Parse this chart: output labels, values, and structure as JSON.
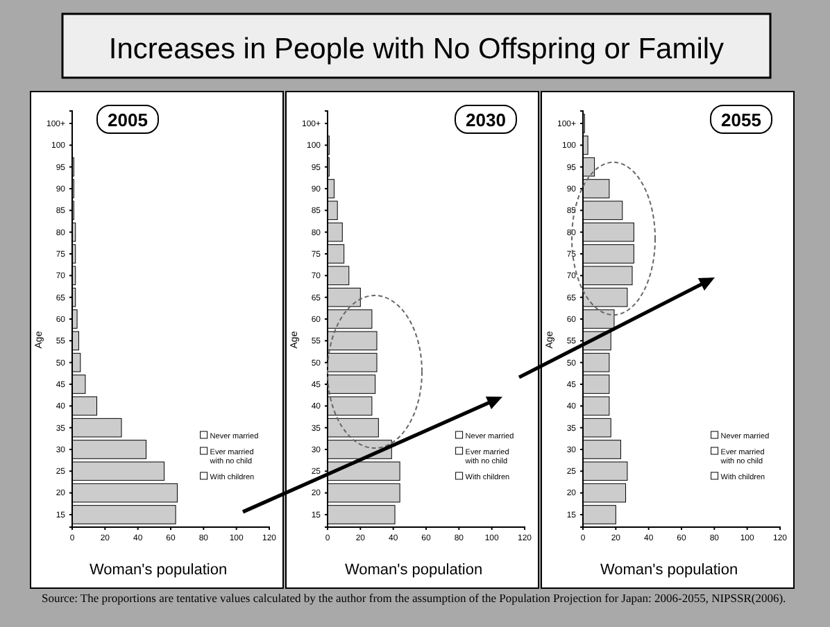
{
  "chart_data": [
    {
      "type": "bar",
      "orientation": "horizontal",
      "title": "Increases in People with No Offspring or Family",
      "subtitle": "2005",
      "xlabel": "Woman's population",
      "ylabel": "Age",
      "categories": [
        "100+",
        "100",
        "95",
        "90",
        "85",
        "80",
        "75",
        "70",
        "65",
        "60",
        "55",
        "50",
        "45",
        "40",
        "35",
        "30",
        "25",
        "20",
        "15"
      ],
      "values": [
        0,
        0,
        1,
        1,
        1,
        2,
        2,
        2,
        2,
        3,
        4,
        5,
        8,
        15,
        30,
        45,
        56,
        64,
        63
      ],
      "color": "#cccccc",
      "xlim": [
        0,
        120
      ],
      "xticks": [
        0,
        20,
        40,
        60,
        80,
        100,
        120
      ],
      "annotations": [
        "Never married",
        "Ever married with no child",
        "With children"
      ]
    },
    {
      "type": "bar",
      "orientation": "horizontal",
      "subtitle": "2030",
      "xlabel": "Woman's population",
      "ylabel": "Age",
      "categories": [
        "100+",
        "100",
        "95",
        "90",
        "85",
        "80",
        "75",
        "70",
        "65",
        "60",
        "55",
        "50",
        "45",
        "40",
        "35",
        "30",
        "25",
        "20",
        "15"
      ],
      "values": [
        0,
        1,
        1,
        4,
        6,
        9,
        10,
        13,
        20,
        27,
        30,
        30,
        29,
        27,
        31,
        39,
        44,
        44,
        41
      ],
      "color": "#cccccc",
      "xlim": [
        0,
        120
      ],
      "xticks": [
        0,
        20,
        40,
        60,
        80,
        100,
        120
      ],
      "annotations": [
        "Never married",
        "Ever married with no child",
        "With children"
      ]
    },
    {
      "type": "bar",
      "orientation": "horizontal",
      "subtitle": "2055",
      "xlabel": "Woman's population",
      "ylabel": "Age",
      "categories": [
        "100+",
        "100",
        "95",
        "90",
        "85",
        "80",
        "75",
        "70",
        "65",
        "60",
        "55",
        "50",
        "45",
        "40",
        "35",
        "30",
        "25",
        "20",
        "15"
      ],
      "values": [
        1,
        3,
        7,
        16,
        24,
        31,
        31,
        30,
        27,
        19,
        17,
        16,
        16,
        16,
        17,
        23,
        27,
        26,
        20
      ],
      "color": "#cccccc",
      "xlim": [
        0,
        120
      ],
      "xticks": [
        0,
        20,
        40,
        60,
        80,
        100,
        120
      ],
      "annotations": [
        "Never married",
        "Ever married with no child",
        "With children",
        "Source: The proportions are tentative values calculated by the author from the assumption of the Population Projection for Japan: 2006-2055, NIPSSR(2006)."
      ]
    }
  ]
}
